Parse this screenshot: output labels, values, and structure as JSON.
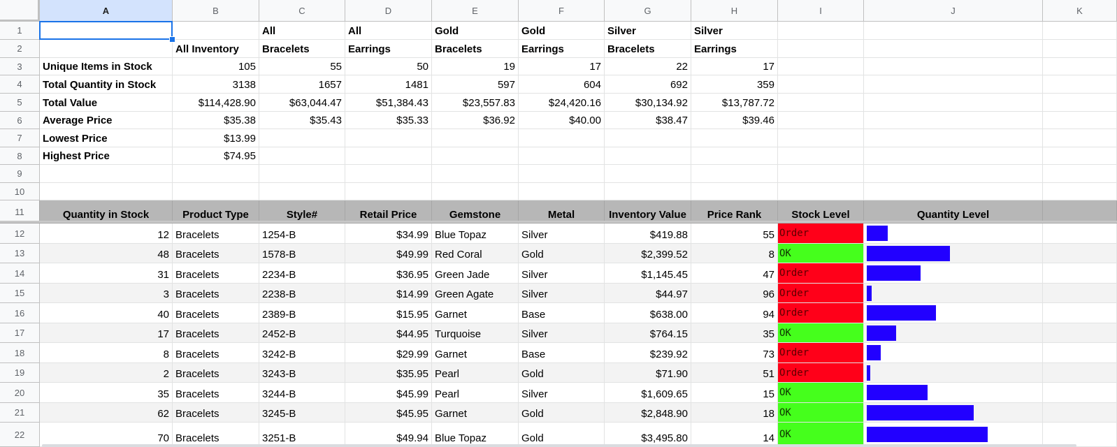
{
  "columns": [
    "A",
    "B",
    "C",
    "D",
    "E",
    "F",
    "G",
    "H",
    "I",
    "J",
    "K"
  ],
  "summary": {
    "row1": [
      "",
      "",
      "All",
      "All",
      "Gold",
      "Gold",
      "Silver",
      "Silver"
    ],
    "row2": [
      "",
      "All Inventory",
      "Bracelets",
      "Earrings",
      "Bracelets",
      "Earrings",
      "Bracelets",
      "Earrings"
    ],
    "rows": [
      {
        "label": "Unique Items in Stock",
        "values": [
          "105",
          "55",
          "50",
          "19",
          "17",
          "22",
          "17"
        ]
      },
      {
        "label": "Total Quantity in Stock",
        "values": [
          "3138",
          "1657",
          "1481",
          "597",
          "604",
          "692",
          "359"
        ]
      },
      {
        "label": "Total Value",
        "values": [
          "$114,428.90",
          "$63,044.47",
          "$51,384.43",
          "$23,557.83",
          "$24,420.16",
          "$30,134.92",
          "$13,787.72"
        ]
      },
      {
        "label": "Average Price",
        "values": [
          "$35.38",
          "$35.43",
          "$35.33",
          "$36.92",
          "$40.00",
          "$38.47",
          "$39.46"
        ]
      },
      {
        "label": "Lowest Price",
        "values": [
          "$13.99",
          "",
          "",
          "",
          "",
          "",
          ""
        ]
      },
      {
        "label": "Highest Price",
        "values": [
          "$74.95",
          "",
          "",
          "",
          "",
          "",
          ""
        ]
      }
    ]
  },
  "table": {
    "headers": [
      "Quantity in Stock",
      "Product Type",
      "Style#",
      "Retail Price",
      "Gemstone",
      "Metal",
      "Inventory Value",
      "Price Rank",
      "Stock Level",
      "Quantity Level"
    ],
    "rows": [
      {
        "qty": "12",
        "type": "Bracelets",
        "style": "1254-B",
        "price": "$34.99",
        "gem": "Blue Topaz",
        "metal": "Silver",
        "value": "$419.88",
        "rank": "55",
        "stock": "Order",
        "level": 12
      },
      {
        "qty": "48",
        "type": "Bracelets",
        "style": "1578-B",
        "price": "$49.99",
        "gem": "Red Coral",
        "metal": "Gold",
        "value": "$2,399.52",
        "rank": "8",
        "stock": "OK",
        "level": 48
      },
      {
        "qty": "31",
        "type": "Bracelets",
        "style": "2234-B",
        "price": "$36.95",
        "gem": "Green Jade",
        "metal": "Silver",
        "value": "$1,145.45",
        "rank": "47",
        "stock": "Order",
        "level": 31
      },
      {
        "qty": "3",
        "type": "Bracelets",
        "style": "2238-B",
        "price": "$14.99",
        "gem": "Green Agate",
        "metal": "Silver",
        "value": "$44.97",
        "rank": "96",
        "stock": "Order",
        "level": 3
      },
      {
        "qty": "40",
        "type": "Bracelets",
        "style": "2389-B",
        "price": "$15.95",
        "gem": "Garnet",
        "metal": "Base",
        "value": "$638.00",
        "rank": "94",
        "stock": "Order",
        "level": 40
      },
      {
        "qty": "17",
        "type": "Bracelets",
        "style": "2452-B",
        "price": "$44.95",
        "gem": "Turquoise",
        "metal": "Silver",
        "value": "$764.15",
        "rank": "35",
        "stock": "OK",
        "level": 17
      },
      {
        "qty": "8",
        "type": "Bracelets",
        "style": "3242-B",
        "price": "$29.99",
        "gem": "Garnet",
        "metal": "Base",
        "value": "$239.92",
        "rank": "73",
        "stock": "Order",
        "level": 8
      },
      {
        "qty": "2",
        "type": "Bracelets",
        "style": "3243-B",
        "price": "$35.95",
        "gem": "Pearl",
        "metal": "Gold",
        "value": "$71.90",
        "rank": "51",
        "stock": "Order",
        "level": 2
      },
      {
        "qty": "35",
        "type": "Bracelets",
        "style": "3244-B",
        "price": "$45.99",
        "gem": "Pearl",
        "metal": "Silver",
        "value": "$1,609.65",
        "rank": "15",
        "stock": "OK",
        "level": 35
      },
      {
        "qty": "62",
        "type": "Bracelets",
        "style": "3245-B",
        "price": "$45.95",
        "gem": "Garnet",
        "metal": "Gold",
        "value": "$2,848.90",
        "rank": "18",
        "stock": "OK",
        "level": 62
      },
      {
        "qty": "70",
        "type": "Bracelets",
        "style": "3251-B",
        "price": "$49.94",
        "gem": "Blue Topaz",
        "metal": "Gold",
        "value": "$3,495.80",
        "rank": "14",
        "stock": "OK",
        "level": 70
      }
    ]
  },
  "colors": {
    "order": "#ff0019",
    "ok": "#45ff1c",
    "bar": "#2200ff",
    "header_bg": "#b7b7b7",
    "selection": "#1a73e8"
  }
}
